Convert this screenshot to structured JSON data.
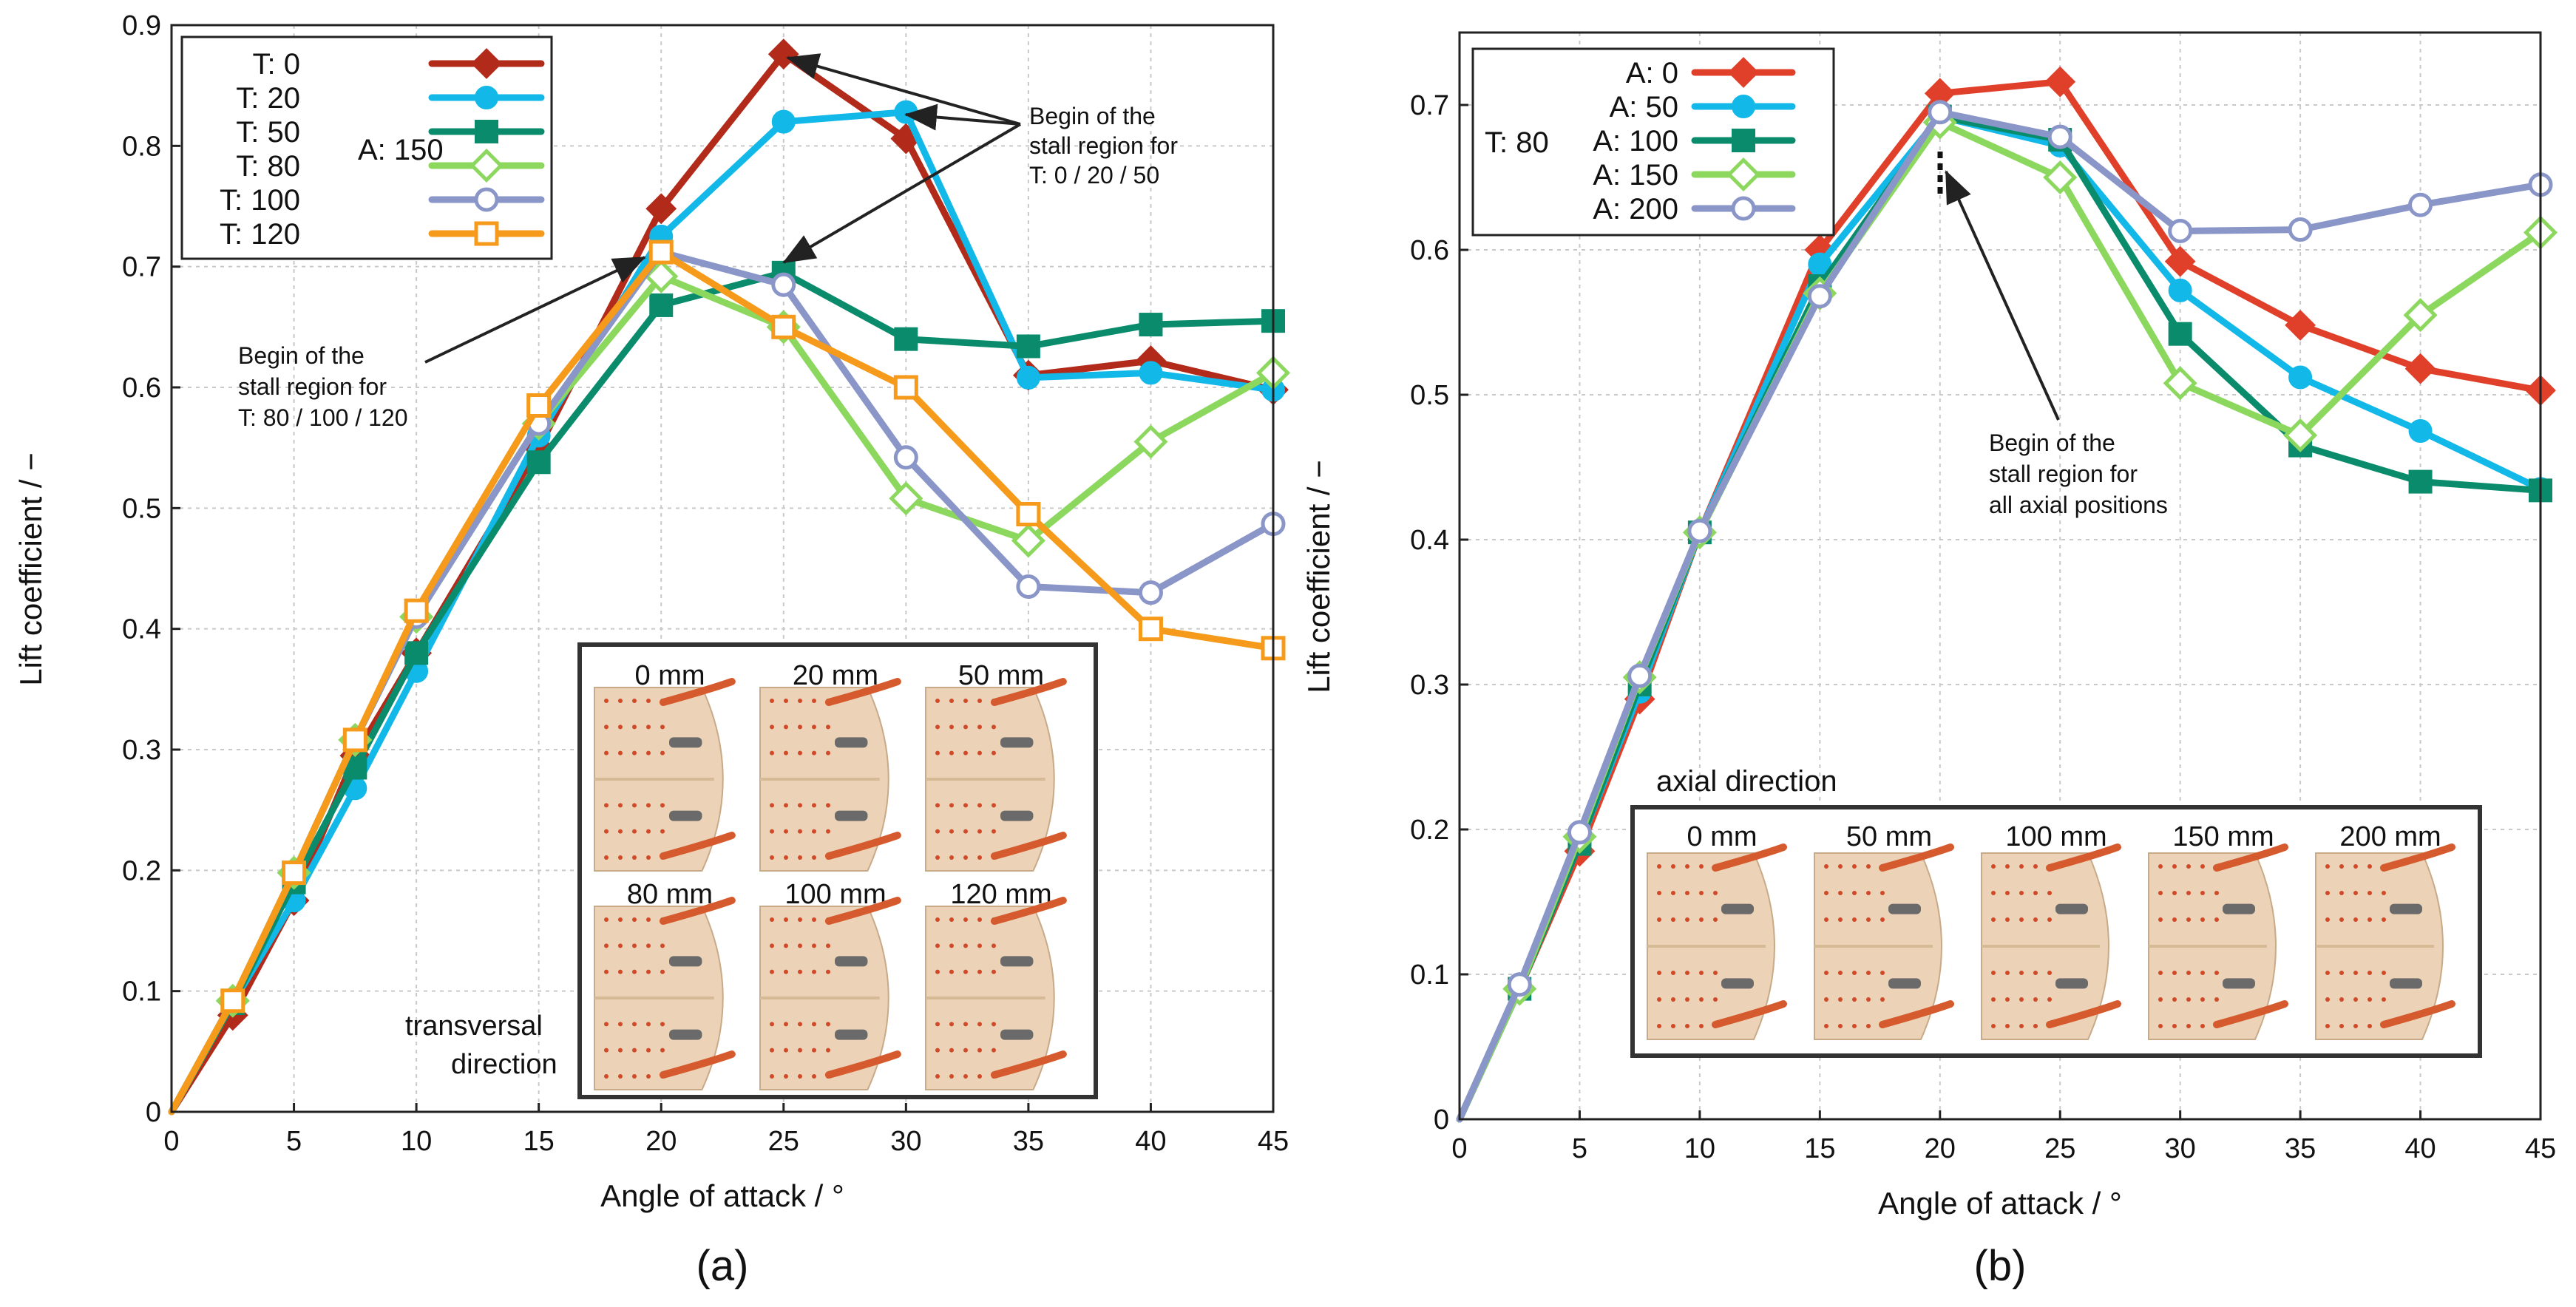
{
  "chart_data": [
    {
      "type": "line",
      "caption": "(a)",
      "xlabel": "Angle of attack / °",
      "ylabel": "Lift coefficient / −",
      "xlim": [
        0,
        45
      ],
      "ylim": [
        0,
        0.9
      ],
      "xticks": [
        "0",
        "5",
        "10",
        "15",
        "20",
        "25",
        "30",
        "35",
        "40",
        "45"
      ],
      "yticks": [
        "0",
        "0.1",
        "0.2",
        "0.3",
        "0.4",
        "0.5",
        "0.6",
        "0.7",
        "0.8",
        "0.9"
      ],
      "grid": true,
      "legend_position": "top-left",
      "legend_group_label": "A: 150",
      "x": [
        0,
        2.5,
        5,
        7.5,
        10,
        15,
        20,
        25,
        30,
        35,
        40,
        45
      ],
      "series": [
        {
          "name": "T: 0",
          "color": "#b22a1a",
          "marker": "diamond-filled",
          "values": [
            0,
            0.08,
            0.175,
            0.295,
            0.38,
            0.55,
            0.748,
            0.876,
            0.806,
            0.61,
            0.622,
            0.598
          ]
        },
        {
          "name": "T: 20",
          "color": "#12b8e8",
          "marker": "circle-filled",
          "values": [
            0,
            0.09,
            0.175,
            0.268,
            0.365,
            0.56,
            0.725,
            0.82,
            0.828,
            0.608,
            0.612,
            0.598
          ]
        },
        {
          "name": "T: 50",
          "color": "#0a8c6c",
          "marker": "square-filled",
          "values": [
            0,
            0.09,
            0.19,
            0.285,
            0.38,
            0.538,
            0.668,
            0.695,
            0.64,
            0.634,
            0.652,
            0.655
          ]
        },
        {
          "name": "T: 80",
          "color": "#8cd85e",
          "marker": "diamond-open",
          "values": [
            0,
            0.092,
            0.198,
            0.308,
            0.41,
            0.57,
            0.692,
            0.65,
            0.508,
            0.473,
            0.555,
            0.612
          ]
        },
        {
          "name": "T: 100",
          "color": "#8a96c8",
          "marker": "circle-open",
          "values": [
            0,
            0.092,
            0.198,
            0.308,
            0.41,
            0.57,
            0.712,
            0.685,
            0.542,
            0.435,
            0.43,
            0.487
          ]
        },
        {
          "name": "T: 120",
          "color": "#f59a1a",
          "marker": "square-open",
          "values": [
            0,
            0.092,
            0.198,
            0.308,
            0.415,
            0.585,
            0.712,
            0.65,
            0.6,
            0.495,
            0.4,
            0.384
          ]
        }
      ],
      "annotations": [
        {
          "lines": [
            "Begin of the",
            "stall region for",
            "T: 0 / 20 / 50"
          ]
        },
        {
          "lines": [
            "Begin of the",
            "stall region for",
            "T: 80 / 100 / 120"
          ]
        }
      ],
      "inset": {
        "labels": [
          "0 mm",
          "20 mm",
          "50 mm",
          "80 mm",
          "100 mm",
          "120 mm"
        ],
        "direction_lines": [
          "transversal",
          "direction"
        ]
      }
    },
    {
      "type": "line",
      "caption": "(b)",
      "xlabel": "Angle of attack / °",
      "ylabel": "Lift coefficient / −",
      "xlim": [
        0,
        45
      ],
      "ylim": [
        0,
        0.75
      ],
      "xticks": [
        "0",
        "5",
        "10",
        "15",
        "20",
        "25",
        "30",
        "35",
        "40",
        "45"
      ],
      "yticks": [
        "0",
        "0.1",
        "0.2",
        "0.3",
        "0.4",
        "0.5",
        "0.6",
        "0.7"
      ],
      "grid": true,
      "legend_position": "top-left",
      "legend_group_label": "T: 80",
      "x": [
        0,
        2.5,
        5,
        7.5,
        10,
        15,
        20,
        25,
        30,
        35,
        40,
        45
      ],
      "series": [
        {
          "name": "A: 0",
          "color": "#e0402a",
          "marker": "diamond-filled",
          "values": [
            0,
            0.09,
            0.185,
            0.29,
            0.405,
            0.6,
            0.708,
            0.716,
            0.592,
            0.548,
            0.518,
            0.503
          ]
        },
        {
          "name": "A: 50",
          "color": "#12b8e8",
          "marker": "circle-filled",
          "values": [
            0,
            0.09,
            0.19,
            0.295,
            0.405,
            0.59,
            0.692,
            0.672,
            0.572,
            0.512,
            0.475,
            0.435
          ]
        },
        {
          "name": "A: 100",
          "color": "#0a8c6c",
          "marker": "square-filled",
          "values": [
            0,
            0.09,
            0.19,
            0.3,
            0.405,
            0.575,
            0.692,
            0.676,
            0.542,
            0.465,
            0.44,
            0.434
          ]
        },
        {
          "name": "A: 150",
          "color": "#8cd85e",
          "marker": "diamond-open",
          "values": [
            0,
            0.09,
            0.195,
            0.305,
            0.405,
            0.57,
            0.688,
            0.65,
            0.508,
            0.472,
            0.555,
            0.612
          ]
        },
        {
          "name": "A: 200",
          "color": "#8a96c8",
          "marker": "circle-open",
          "values": [
            0,
            0.093,
            0.198,
            0.306,
            0.406,
            0.568,
            0.695,
            0.678,
            0.613,
            0.614,
            0.631,
            0.645
          ]
        }
      ],
      "annotations": [
        {
          "lines": [
            "Begin of the",
            "stall region for",
            "all axial positions"
          ]
        }
      ],
      "inset": {
        "labels": [
          "0 mm",
          "50 mm",
          "100 mm",
          "150 mm",
          "200 mm"
        ],
        "direction_lines": [
          "axial direction"
        ]
      }
    }
  ]
}
